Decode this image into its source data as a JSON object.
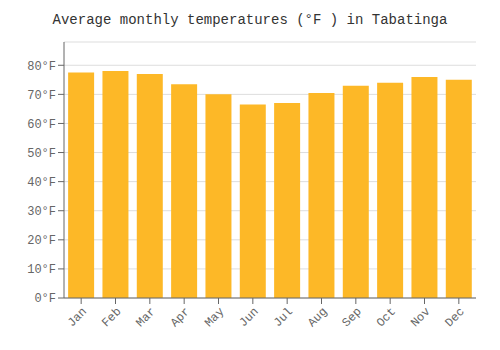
{
  "chart_data": {
    "type": "bar",
    "title": "Average monthly temperatures (°F ) in Tabatinga",
    "categories": [
      "Jan",
      "Feb",
      "Mar",
      "Apr",
      "May",
      "Jun",
      "Jul",
      "Aug",
      "Sep",
      "Oct",
      "Nov",
      "Dec"
    ],
    "values": [
      77.5,
      78.0,
      77.0,
      73.5,
      70.0,
      66.5,
      67.0,
      70.5,
      73.0,
      74.0,
      76.0,
      75.0
    ],
    "color": "#FDB827",
    "ylim": [
      0,
      88
    ],
    "yticks": [
      {
        "value": 0,
        "label": "0°F"
      },
      {
        "value": 10,
        "label": "10°F"
      },
      {
        "value": 20,
        "label": "20°F"
      },
      {
        "value": 30,
        "label": "30°F"
      },
      {
        "value": 40,
        "label": "40°F"
      },
      {
        "value": 50,
        "label": "50°F"
      },
      {
        "value": 60,
        "label": "60°F"
      },
      {
        "value": 70,
        "label": "70°F"
      },
      {
        "value": 80,
        "label": "80°F"
      }
    ],
    "grid": true
  }
}
